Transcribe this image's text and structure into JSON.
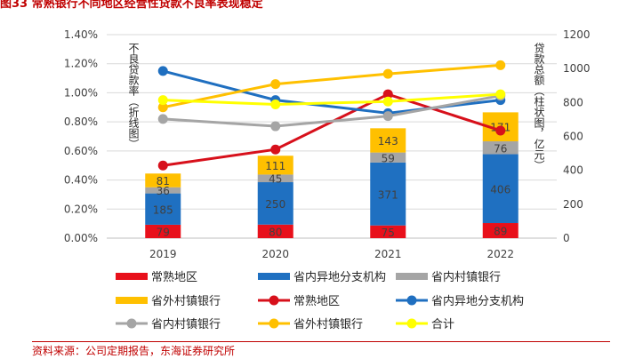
{
  "figure_title": "图33  常熟银行不同地区经营性贷款不良率表现稳定",
  "source": "资料来源：公司定期报告，东海证券研究所",
  "chart_data": {
    "type": "bar+line",
    "categories": [
      "2019",
      "2020",
      "2021",
      "2022"
    ],
    "left_axis": {
      "label": "不良贷款率（折线图）",
      "min": 0,
      "max": 1.4,
      "ticks": [
        "0.00%",
        "0.20%",
        "0.40%",
        "0.60%",
        "0.80%",
        "1.00%",
        "1.20%",
        "1.40%"
      ]
    },
    "right_axis": {
      "label": "贷款总额（柱状图，亿元）",
      "min": 0,
      "max": 1200,
      "ticks": [
        "0",
        "200",
        "400",
        "600",
        "800",
        "1000",
        "1200"
      ]
    },
    "bar_series": [
      {
        "name": "常熟地区",
        "color": "#e8101b",
        "values": [
          79,
          80,
          75,
          89
        ]
      },
      {
        "name": "省内异地分支机构",
        "color": "#1f70c1",
        "values": [
          185,
          250,
          371,
          406
        ]
      },
      {
        "name": "省内村镇银行",
        "color": "#a5a5a5",
        "values": [
          36,
          45,
          59,
          76
        ]
      },
      {
        "name": "省外村镇银行",
        "color": "#ffc000",
        "values": [
          81,
          111,
          143,
          171
        ]
      }
    ],
    "line_series": [
      {
        "name": "常熟地区",
        "color": "#d7101b",
        "values": [
          0.5,
          0.61,
          0.99,
          0.74
        ]
      },
      {
        "name": "省内异地分支机构",
        "color": "#1f6fc0",
        "values": [
          1.15,
          0.95,
          0.86,
          0.95
        ]
      },
      {
        "name": "省内村镇银行",
        "color": "#a5a5a5",
        "values": [
          0.82,
          0.77,
          0.84,
          0.98
        ]
      },
      {
        "name": "省外村镇银行",
        "color": "#ffc000",
        "values": [
          0.9,
          1.06,
          1.13,
          1.19
        ]
      },
      {
        "name": "合计",
        "color": "#ffff00",
        "values": [
          0.95,
          0.92,
          0.94,
          0.99
        ]
      }
    ],
    "legend": [
      {
        "label": "常熟地区",
        "kind": "bar",
        "color": "#e8101b"
      },
      {
        "label": "省内异地分支机构",
        "kind": "bar",
        "color": "#1f70c1"
      },
      {
        "label": "省内村镇银行",
        "kind": "bar",
        "color": "#a5a5a5"
      },
      {
        "label": "省外村镇银行",
        "kind": "bar",
        "color": "#ffc000"
      },
      {
        "label": "常熟地区",
        "kind": "line",
        "color": "#d7101b"
      },
      {
        "label": "省内异地分支机构",
        "kind": "line",
        "color": "#1f6fc0"
      },
      {
        "label": "省内村镇银行",
        "kind": "line",
        "color": "#a5a5a5"
      },
      {
        "label": "省外村镇银行",
        "kind": "line",
        "color": "#ffc000"
      },
      {
        "label": "合计",
        "kind": "line",
        "color": "#ffff00"
      }
    ]
  }
}
